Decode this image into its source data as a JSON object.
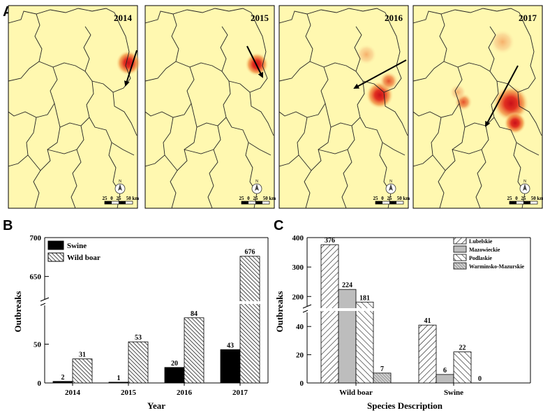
{
  "panels": {
    "a": "A",
    "b": "B",
    "c": "C"
  },
  "maps": {
    "years": [
      "2014",
      "2015",
      "2016",
      "2017"
    ],
    "scale_labels": [
      "25",
      "0",
      "25",
      "50 km"
    ],
    "compass_letter": "N",
    "colors": {
      "background": "#FFF8B0",
      "hotspot_core": "#D8141A",
      "hotspot_mid": "#EE6628",
      "hotspot_faint": "#F6B46C"
    }
  },
  "chart_data": [
    {
      "type": "bar",
      "panel": "B",
      "categories": [
        "2014",
        "2015",
        "2016",
        "2017"
      ],
      "series": [
        {
          "name": "Swine",
          "values": [
            2,
            1,
            20,
            43
          ],
          "fill": "#000000"
        },
        {
          "name": "Wild boar",
          "values": [
            31,
            53,
            84,
            676
          ],
          "fill": "hatch"
        }
      ],
      "xlabel": "Year",
      "ylabel": "Outbreaks",
      "axis_break": {
        "lower": [
          0,
          100
        ],
        "upper": [
          620,
          700
        ]
      },
      "yticks": [
        0,
        50,
        650,
        700
      ],
      "legend_position": "top-left"
    },
    {
      "type": "bar",
      "panel": "C",
      "categories": [
        "Wild boar",
        "Swine"
      ],
      "series": [
        {
          "name": "Lubelskie",
          "values": [
            376,
            41
          ]
        },
        {
          "name": "Mazowieckie",
          "values": [
            224,
            6
          ]
        },
        {
          "name": "Podlaskie",
          "values": [
            181,
            22
          ]
        },
        {
          "name": "Warminsko-Mazurskie",
          "values": [
            7,
            0
          ]
        }
      ],
      "xlabel": "Species Description",
      "ylabel": "Outbreaks",
      "axis_break": {
        "lower": [
          0,
          50
        ],
        "upper": [
          165,
          400
        ]
      },
      "yticks": [
        0,
        20,
        40,
        200,
        300,
        400
      ],
      "legend_position": "top-right"
    }
  ]
}
